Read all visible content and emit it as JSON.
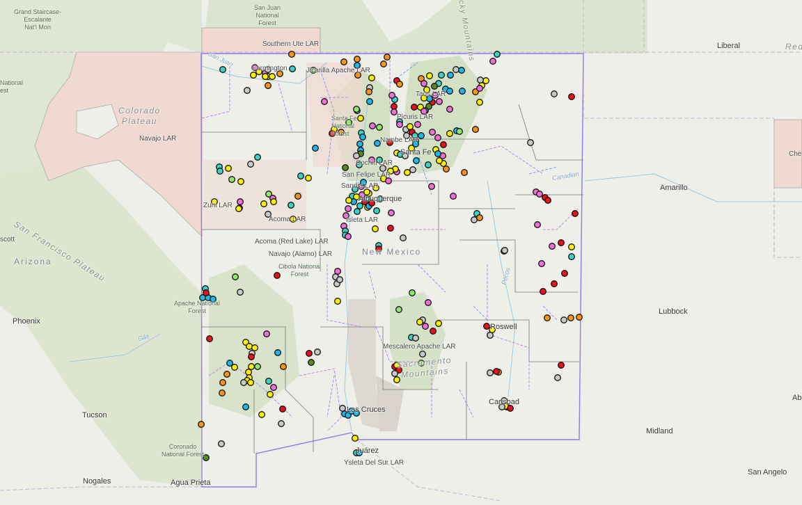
{
  "map": {
    "layers": {
      "lar_fill": "#efd9d0",
      "county_line": "#666666",
      "district_line": "#6e88ef",
      "purple_boundary": "#b26bf0"
    },
    "point_categories": [
      {
        "key": "orange",
        "color": "#f7941d"
      },
      {
        "key": "yellow",
        "color": "#fff200"
      },
      {
        "key": "pink",
        "color": "#f06fd6"
      },
      {
        "key": "blue",
        "color": "#1fb6e8"
      },
      {
        "key": "teal",
        "color": "#3ccfc4"
      },
      {
        "key": "red",
        "color": "#e8101a"
      },
      {
        "key": "gray",
        "color": "#c8c8c8"
      },
      {
        "key": "lightgreen",
        "color": "#8ee86f"
      },
      {
        "key": "darkgreen",
        "color": "#5a8a1e"
      }
    ],
    "labels": {
      "grand_staircase": "Grand Staircase-\nEscalante\nNat'l Mon",
      "san_juan_nf": "San Juan\nNational\nForest",
      "national_left": "National",
      "est_left": "est",
      "southern_ute": "Southern Ute LAR",
      "farmington": "Farmington",
      "jicarilla": "Jicarilla Apache LAR",
      "navajo": "Navajo LAR",
      "colorado_plateau": "Colorado\nPlateau",
      "san_juan_river": "San Juan",
      "rocky_mountains": "Rocky Mountains",
      "liberal": "Liberal",
      "red": "Red",
      "santa_fe_nf": "Santa Fe\nNational\nForest",
      "taos": "Taos LAR",
      "picuris": "Picuris LAR",
      "nambe": "Nambe LAR",
      "santa_fe": "Santa Fe",
      "cochiti": "Cochiti LAR",
      "san_felipe": "San Felipe LAR",
      "sandia": "Sandia LAR",
      "albuquerque": "Albuquerque",
      "zuni": "Zuni LAR",
      "acoma": "Acoma LAR",
      "isleta": "Isleta LAR",
      "acoma_red_lake": "Acoma (Red Lake) LAR",
      "navajo_alamo": "Navajo (Alamo) LAR",
      "cibola_nf": "Cibola National\nForest",
      "new_mexico": "New Mexico",
      "canadian": "Canadian",
      "amarillo": "Amarillo",
      "che": "Che",
      "san_francisco_plateau": "San Francisco Plateau",
      "arizona": "Arizona",
      "scott": "scott",
      "pecos": "Pecos",
      "apache_nf": "Apache National\nForest",
      "phoenix": "Phoenix",
      "gila": "Gila",
      "roswell": "Roswell",
      "lubbock": "Lubbock",
      "mescalero": "Mescalero Apache LAR",
      "sacramento_mountains": "Sacramento\nMountains",
      "carlsbad": "Carlsbad",
      "ab": "Ab",
      "tucson": "Tucson",
      "las_cruces": "Las Cruces",
      "midland": "Midland",
      "coronado_nf": "Coronado\nNational Forest",
      "juarez": "Juárez",
      "ysleta": "Ysleta Del Sur LAR",
      "san_angelo": "San Angelo",
      "nogales": "Nogales",
      "agua_prieta": "Agua Prieta"
    }
  }
}
